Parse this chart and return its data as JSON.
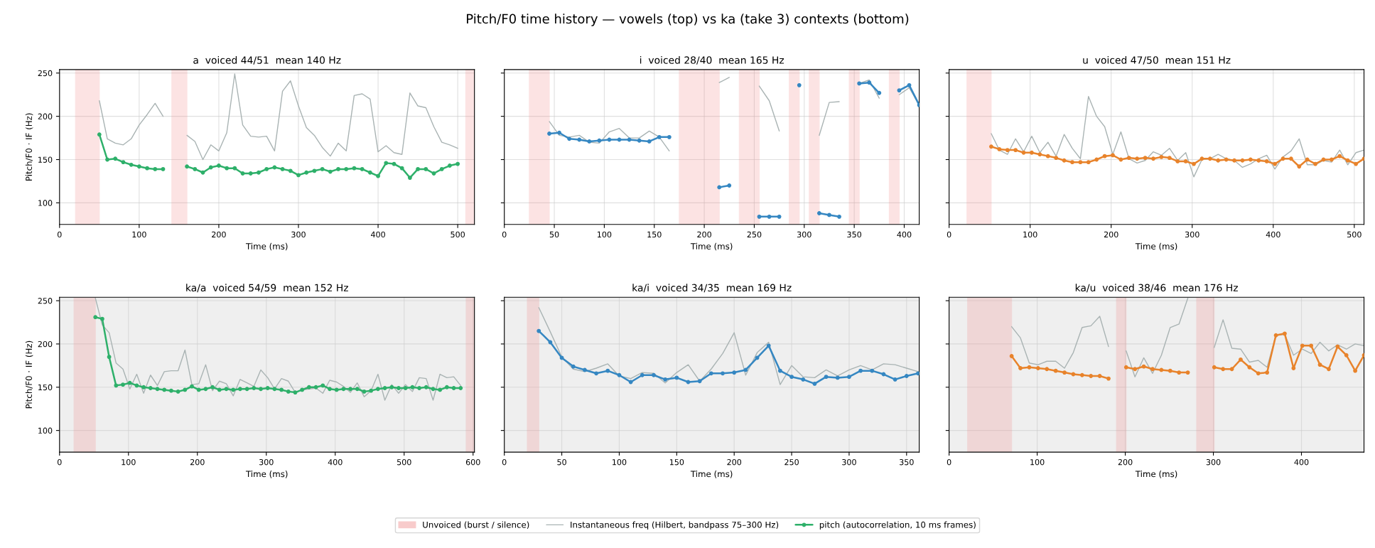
{
  "chart_data": [
    {
      "type": "other",
      "title": "Pitch/F0 time history — vowels (top) vs ka (take 3) contexts (bottom)"
    },
    {
      "type": "line",
      "title": "a  voiced 44/51  mean 140 Hz",
      "xlabel": "Time (ms)",
      "ylabel": "Pitch/F0 · IF (Hz)",
      "xlim": [
        0,
        521
      ],
      "xticks": [
        0,
        100,
        200,
        300,
        400,
        500
      ],
      "ylim": [
        75,
        254
      ],
      "yticks": [
        100,
        150,
        200,
        250
      ],
      "grid": true,
      "legend": "bottom",
      "bands": [
        {
          "axis": "x",
          "from": 20,
          "to": 50,
          "label": "Unvoiced (burst / silence)",
          "color": "#f08080"
        },
        {
          "axis": "x",
          "from": 141,
          "to": 160,
          "color": "#f08080"
        },
        {
          "axis": "x",
          "from": 510,
          "to": 521,
          "color": "#f08080"
        }
      ],
      "series": [
        {
          "name": "Instantaneous freq (Hilbert, bandpass 75–300 Hz)",
          "color": "#a9b3b3",
          "marker": "none",
          "x": [
            50,
            60,
            70,
            80,
            90,
            100,
            110,
            120,
            130,
            140,
            160,
            170,
            180,
            190,
            200,
            210,
            220,
            230,
            240,
            250,
            260,
            270,
            280,
            290,
            300,
            310,
            320,
            330,
            340,
            350,
            360,
            370,
            380,
            390,
            400,
            410,
            420,
            430,
            440,
            450,
            460,
            470,
            480,
            490,
            500
          ],
          "values": [
            218,
            174,
            169,
            167,
            174,
            190,
            202,
            215,
            200,
            null,
            178,
            171,
            150,
            167,
            160,
            181,
            249,
            190,
            177,
            176,
            177,
            160,
            229,
            241,
            212,
            187,
            178,
            164,
            154,
            169,
            160,
            224,
            226,
            220,
            159,
            166,
            158,
            156,
            227,
            212,
            210,
            188,
            170,
            167,
            163
          ]
        },
        {
          "name": "pitch (autocorrelation, 10 ms frames)",
          "color": "#2eb06a",
          "marker": "circle",
          "x": [
            50,
            60,
            70,
            80,
            90,
            100,
            110,
            120,
            130,
            140,
            160,
            170,
            180,
            190,
            200,
            210,
            220,
            230,
            240,
            250,
            260,
            270,
            280,
            290,
            300,
            310,
            320,
            330,
            340,
            350,
            360,
            370,
            380,
            390,
            400,
            410,
            420,
            430,
            440,
            450,
            460,
            470,
            480,
            490,
            500
          ],
          "values": [
            179,
            150,
            151,
            147,
            144,
            142,
            140,
            139,
            139,
            null,
            142,
            139,
            135,
            141,
            143,
            140,
            140,
            134,
            134,
            135,
            139,
            141,
            139,
            137,
            132,
            135,
            137,
            139,
            136,
            139,
            139,
            140,
            139,
            135,
            131,
            146,
            145,
            140,
            129,
            139,
            139,
            134,
            139,
            143,
            145
          ]
        }
      ]
    },
    {
      "type": "line",
      "title": "i  voiced 28/40  mean 165 Hz",
      "xlabel": "Time (ms)",
      "xlim": [
        0,
        415
      ],
      "xticks": [
        0,
        50,
        100,
        150,
        200,
        250,
        300,
        350,
        400
      ],
      "ylim": [
        75,
        254
      ],
      "yticks": [
        100,
        150,
        200,
        250
      ],
      "grid": true,
      "tick_labels": "x",
      "bands": [
        {
          "axis": "x",
          "from": 25,
          "to": 45,
          "color": "#f08080"
        },
        {
          "axis": "x",
          "from": 175,
          "to": 215,
          "color": "#f08080"
        },
        {
          "axis": "x",
          "from": 235,
          "to": 255,
          "color": "#f08080"
        },
        {
          "axis": "x",
          "from": 285,
          "to": 295,
          "color": "#f08080"
        },
        {
          "axis": "x",
          "from": 305,
          "to": 315,
          "color": "#f08080"
        },
        {
          "axis": "x",
          "from": 345,
          "to": 355,
          "color": "#f08080"
        },
        {
          "axis": "x",
          "from": 385,
          "to": 395,
          "color": "#f08080"
        }
      ],
      "series": [
        {
          "color": "#a9b3b3",
          "marker": "none",
          "x": [
            45,
            55,
            65,
            75,
            85,
            95,
            105,
            115,
            125,
            135,
            145,
            155,
            165,
            175,
            215,
            225,
            235,
            255,
            265,
            275,
            285,
            295,
            305,
            315,
            325,
            335,
            345,
            355,
            365,
            375,
            385,
            395,
            405,
            415
          ],
          "values": [
            194,
            178,
            176,
            178,
            170,
            169,
            182,
            186,
            175,
            175,
            183,
            176,
            160,
            null,
            239,
            245,
            null,
            235,
            218,
            183,
            null,
            null,
            null,
            178,
            216,
            217,
            null,
            238,
            242,
            221,
            null,
            225,
            233,
            213
          ]
        },
        {
          "color": "#3587c2",
          "marker": "circle",
          "x": [
            45,
            55,
            65,
            75,
            85,
            95,
            105,
            115,
            125,
            135,
            145,
            155,
            165,
            175,
            215,
            225,
            235,
            255,
            265,
            275,
            285,
            295,
            305,
            315,
            325,
            335,
            345,
            355,
            365,
            375,
            385,
            395,
            405,
            415
          ],
          "values": [
            180,
            181,
            174,
            173,
            171,
            172,
            173,
            173,
            173,
            172,
            171,
            176,
            176,
            null,
            118,
            120,
            null,
            84,
            84,
            84,
            null,
            236,
            null,
            88,
            86,
            84,
            null,
            238,
            239,
            227,
            null,
            230,
            236,
            213
          ]
        }
      ]
    },
    {
      "type": "line",
      "title": "u  voiced 47/50  mean 151 Hz",
      "xlabel": "Time (ms)",
      "xlim": [
        0,
        512
      ],
      "xticks": [
        0,
        100,
        200,
        300,
        400,
        500
      ],
      "ylim": [
        75,
        254
      ],
      "yticks": [
        100,
        150,
        200,
        250
      ],
      "grid": true,
      "tick_labels": "x",
      "bands": [
        {
          "axis": "x",
          "from": 22,
          "to": 52,
          "color": "#f08080"
        }
      ],
      "series": [
        {
          "color": "#a9b3b3",
          "marker": "none",
          "x": [
            52,
            62,
            72,
            82,
            92,
            102,
            112,
            122,
            132,
            142,
            152,
            162,
            172,
            182,
            192,
            202,
            212,
            222,
            232,
            242,
            252,
            262,
            272,
            282,
            292,
            302,
            312,
            322,
            332,
            342,
            352,
            362,
            372,
            382,
            392,
            402,
            412,
            422,
            432,
            442,
            452,
            462,
            472,
            482,
            492,
            502,
            512
          ],
          "values": [
            180,
            161,
            156,
            174,
            159,
            177,
            158,
            170,
            154,
            179,
            163,
            151,
            223,
            200,
            188,
            156,
            182,
            151,
            146,
            149,
            159,
            155,
            163,
            149,
            158,
            130,
            150,
            151,
            156,
            151,
            149,
            141,
            145,
            151,
            155,
            139,
            153,
            160,
            174,
            144,
            144,
            149,
            147,
            161,
            144,
            158,
            161
          ]
        },
        {
          "color": "#e8832b",
          "marker": "circle",
          "x": [
            52,
            62,
            72,
            82,
            92,
            102,
            112,
            122,
            132,
            142,
            152,
            162,
            172,
            182,
            192,
            202,
            212,
            222,
            232,
            242,
            252,
            262,
            272,
            282,
            292,
            302,
            312,
            322,
            332,
            342,
            352,
            362,
            372,
            382,
            392,
            402,
            412,
            422,
            432,
            442,
            452,
            462,
            472,
            482,
            492,
            502,
            512
          ],
          "values": [
            165,
            162,
            161,
            161,
            158,
            158,
            156,
            154,
            152,
            149,
            147,
            147,
            147,
            150,
            154,
            155,
            150,
            152,
            151,
            152,
            151,
            153,
            152,
            148,
            148,
            145,
            151,
            151,
            149,
            150,
            149,
            149,
            150,
            149,
            148,
            145,
            151,
            151,
            142,
            150,
            145,
            150,
            150,
            154,
            149,
            145,
            151
          ]
        }
      ]
    },
    {
      "type": "line",
      "title": "ka/a  voiced 54/59  mean 152 Hz",
      "xlabel": "Time (ms)",
      "ylabel": "Pitch/F0 · IF (Hz)",
      "xlim": [
        0,
        602
      ],
      "xticks": [
        0,
        100,
        200,
        300,
        400,
        500,
        600
      ],
      "ylim": [
        75,
        254
      ],
      "yticks": [
        100,
        150,
        200,
        250
      ],
      "grid": true,
      "bands": [
        {
          "axis": "x",
          "from": 21,
          "to": 52,
          "color": "#f08080"
        },
        {
          "axis": "x",
          "from": 590,
          "to": 602,
          "color": "#f08080"
        }
      ],
      "series": [
        {
          "color": "#a9b3b3",
          "marker": "none",
          "x": [
            52,
            62,
            72,
            82,
            92,
            102,
            112,
            122,
            132,
            142,
            152,
            162,
            172,
            182,
            192,
            202,
            212,
            222,
            232,
            242,
            252,
            262,
            272,
            282,
            292,
            302,
            312,
            322,
            332,
            342,
            352,
            362,
            372,
            382,
            392,
            402,
            412,
            422,
            432,
            442,
            452,
            462,
            472,
            482,
            492,
            502,
            512,
            522,
            532,
            542,
            552,
            562,
            572,
            582
          ],
          "values": [
            253,
            222,
            213,
            178,
            171,
            148,
            165,
            143,
            164,
            152,
            168,
            169,
            169,
            193,
            153,
            154,
            176,
            146,
            157,
            154,
            140,
            159,
            155,
            151,
            170,
            161,
            148,
            160,
            157,
            144,
            147,
            148,
            149,
            143,
            158,
            156,
            151,
            144,
            155,
            139,
            146,
            165,
            135,
            153,
            143,
            153,
            145,
            161,
            160,
            135,
            165,
            161,
            162,
            152
          ]
        },
        {
          "color": "#2eb06a",
          "marker": "circle",
          "x": [
            52,
            62,
            72,
            82,
            92,
            102,
            112,
            122,
            132,
            142,
            152,
            162,
            172,
            182,
            192,
            202,
            212,
            222,
            232,
            242,
            252,
            262,
            272,
            282,
            292,
            302,
            312,
            322,
            332,
            342,
            352,
            362,
            372,
            382,
            392,
            402,
            412,
            422,
            432,
            442,
            452,
            462,
            472,
            482,
            492,
            502,
            512,
            522,
            532,
            542,
            552,
            562,
            572,
            582
          ],
          "values": [
            231,
            229,
            185,
            152,
            153,
            155,
            152,
            150,
            149,
            148,
            147,
            146,
            145,
            147,
            151,
            147,
            148,
            150,
            147,
            148,
            147,
            148,
            148,
            149,
            148,
            149,
            148,
            147,
            145,
            144,
            147,
            150,
            150,
            152,
            148,
            147,
            148,
            148,
            148,
            145,
            146,
            148,
            149,
            150,
            149,
            149,
            150,
            149,
            150,
            148,
            147,
            150,
            149,
            149
          ]
        }
      ]
    },
    {
      "type": "line",
      "title": "ka/i  voiced 34/35  mean 169 Hz",
      "xlabel": "Time (ms)",
      "xlim": [
        0,
        361
      ],
      "xticks": [
        0,
        50,
        100,
        150,
        200,
        250,
        300,
        350
      ],
      "ylim": [
        75,
        254
      ],
      "yticks": [
        100,
        150,
        200,
        250
      ],
      "grid": true,
      "tick_labels": "x",
      "bands": [
        {
          "axis": "x",
          "from": 20,
          "to": 30,
          "color": "#f08080"
        }
      ],
      "series": [
        {
          "color": "#a9b3b3",
          "marker": "none",
          "x": [
            30,
            40,
            50,
            60,
            70,
            80,
            90,
            100,
            110,
            120,
            130,
            140,
            150,
            160,
            170,
            180,
            190,
            200,
            210,
            220,
            230,
            240,
            250,
            260,
            270,
            280,
            290,
            300,
            310,
            320,
            330,
            340,
            350,
            360
          ],
          "values": [
            242,
            214,
            185,
            171,
            168,
            172,
            177,
            163,
            160,
            167,
            166,
            155,
            167,
            176,
            157,
            171,
            189,
            213,
            164,
            190,
            202,
            153,
            175,
            162,
            161,
            170,
            163,
            170,
            175,
            170,
            177,
            176,
            172,
            168
          ]
        },
        {
          "color": "#3587c2",
          "marker": "circle",
          "x": [
            30,
            40,
            50,
            60,
            70,
            80,
            90,
            100,
            110,
            120,
            130,
            140,
            150,
            160,
            170,
            180,
            190,
            200,
            210,
            220,
            230,
            240,
            250,
            260,
            270,
            280,
            290,
            300,
            310,
            320,
            330,
            340,
            350,
            360
          ],
          "values": [
            215,
            202,
            184,
            174,
            170,
            166,
            169,
            164,
            156,
            164,
            164,
            159,
            161,
            156,
            157,
            166,
            166,
            167,
            170,
            184,
            198,
            169,
            162,
            159,
            154,
            162,
            161,
            162,
            169,
            169,
            165,
            159,
            163,
            166
          ]
        }
      ]
    },
    {
      "type": "line",
      "title": "ka/u  voiced 38/46  mean 176 Hz",
      "xlabel": "Time (ms)",
      "xlim": [
        0,
        471
      ],
      "xticks": [
        0,
        100,
        200,
        300,
        400
      ],
      "ylim": [
        75,
        254
      ],
      "yticks": [
        100,
        150,
        200,
        250
      ],
      "grid": true,
      "tick_labels": "x",
      "bands": [
        {
          "axis": "x",
          "from": 21,
          "to": 71,
          "color": "#f08080"
        },
        {
          "axis": "x",
          "from": 190,
          "to": 201,
          "color": "#f08080"
        },
        {
          "axis": "x",
          "from": 281,
          "to": 301,
          "color": "#f08080"
        }
      ],
      "series": [
        {
          "color": "#a9b3b3",
          "marker": "none",
          "x": [
            71,
            81,
            91,
            101,
            111,
            121,
            131,
            141,
            151,
            161,
            171,
            181,
            191,
            201,
            211,
            221,
            231,
            241,
            251,
            261,
            271,
            291,
            301,
            311,
            321,
            331,
            341,
            351,
            361,
            371,
            381,
            391,
            401,
            411,
            421,
            431,
            441,
            451,
            461,
            471
          ],
          "values": [
            220,
            207,
            178,
            176,
            180,
            180,
            172,
            190,
            219,
            221,
            232,
            197,
            null,
            192,
            162,
            184,
            166,
            187,
            219,
            223,
            253,
            null,
            196,
            228,
            195,
            194,
            179,
            181,
            173,
            210,
            211,
            187,
            194,
            189,
            202,
            192,
            199,
            194,
            200,
            198
          ]
        },
        {
          "color": "#e8832b",
          "marker": "circle",
          "x": [
            71,
            81,
            91,
            101,
            111,
            121,
            131,
            141,
            151,
            161,
            171,
            181,
            191,
            201,
            211,
            221,
            231,
            241,
            251,
            261,
            271,
            291,
            301,
            311,
            321,
            331,
            341,
            351,
            361,
            371,
            381,
            391,
            401,
            411,
            421,
            431,
            441,
            451,
            461,
            471
          ],
          "values": [
            186,
            172,
            173,
            172,
            171,
            169,
            167,
            165,
            164,
            163,
            163,
            160,
            null,
            173,
            171,
            174,
            171,
            170,
            169,
            167,
            167,
            null,
            173,
            171,
            171,
            182,
            173,
            166,
            167,
            210,
            212,
            172,
            198,
            198,
            176,
            171,
            197,
            187,
            169,
            187
          ]
        }
      ]
    }
  ]
}
